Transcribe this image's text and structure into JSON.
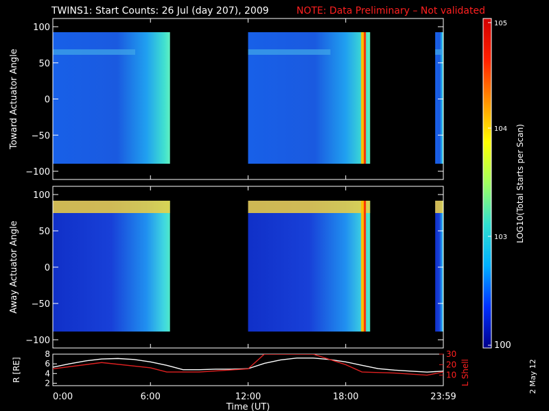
{
  "title": "TWINS1: Start Counts: 26 Jul (day 207), 2009",
  "note": "NOTE: Data Preliminary – Not validated",
  "date_stamp": "2 May 12",
  "colorbar": {
    "label": "LOG10(Total Starts per Scan)",
    "ticks": [
      "10^5",
      "10^4",
      "10^3",
      "100"
    ],
    "colors": [
      "#00008a",
      "#0030ff",
      "#00b0ff",
      "#30e0d0",
      "#a0ff60",
      "#ffff00",
      "#ff9000",
      "#ff2000",
      "#d00000"
    ]
  },
  "chart_data": [
    {
      "type": "heatmap",
      "panel": "toward",
      "ylabel": "Toward Actuator Angle",
      "ylim": [
        -100,
        100
      ],
      "yticks": [
        "100",
        "50",
        "0",
        "-50",
        "-100"
      ],
      "xlim_hours": [
        0,
        24
      ],
      "data_coverage_hours": [
        [
          0,
          7.2
        ],
        [
          12.0,
          19.5
        ],
        [
          23.5,
          24
        ]
      ]
    },
    {
      "type": "heatmap",
      "panel": "away",
      "ylabel": "Away Actuator Angle",
      "ylim": [
        -100,
        100
      ],
      "yticks": [
        "100",
        "50",
        "0",
        "-50",
        "-100"
      ],
      "xlim_hours": [
        0,
        24
      ],
      "data_coverage_hours": [
        [
          0,
          7.2
        ],
        [
          12.0,
          19.5
        ],
        [
          23.5,
          24
        ]
      ]
    },
    {
      "type": "line",
      "panel": "ephemeris",
      "xlabel": "Time (UT)",
      "xticks": [
        "0:00",
        "6:00",
        "12:00",
        "18:00",
        "23:59"
      ],
      "ylabel_left": "R [RE]",
      "yticks_left": [
        "8",
        "6",
        "4",
        "2"
      ],
      "ylim_left": [
        1.5,
        8
      ],
      "ylabel_right": "L Shell",
      "yticks_right": [
        "30",
        "20",
        "10"
      ],
      "ylim_right": [
        0,
        30
      ],
      "series": [
        {
          "name": "R [RE]",
          "color": "#ffffff",
          "x": [
            0,
            1,
            2,
            3,
            4,
            5,
            6,
            7,
            8,
            9,
            10,
            11,
            12,
            13,
            14,
            15,
            16,
            17,
            18,
            19,
            20,
            21,
            22,
            23,
            24
          ],
          "y": [
            5.3,
            6.0,
            6.6,
            7.0,
            7.1,
            6.9,
            6.4,
            5.7,
            4.8,
            4.8,
            4.9,
            4.9,
            5.0,
            6.1,
            6.8,
            7.2,
            7.2,
            6.9,
            6.4,
            5.7,
            5.0,
            4.7,
            4.5,
            4.3,
            4.5
          ]
        },
        {
          "name": "L Shell",
          "color": "#e02020",
          "x": [
            0,
            3,
            6,
            7,
            9,
            12,
            13,
            16,
            18,
            19,
            21,
            23,
            24
          ],
          "y": [
            16,
            22,
            17,
            13,
            13,
            16,
            30,
            30,
            20,
            13,
            12,
            10,
            13
          ]
        }
      ]
    }
  ]
}
